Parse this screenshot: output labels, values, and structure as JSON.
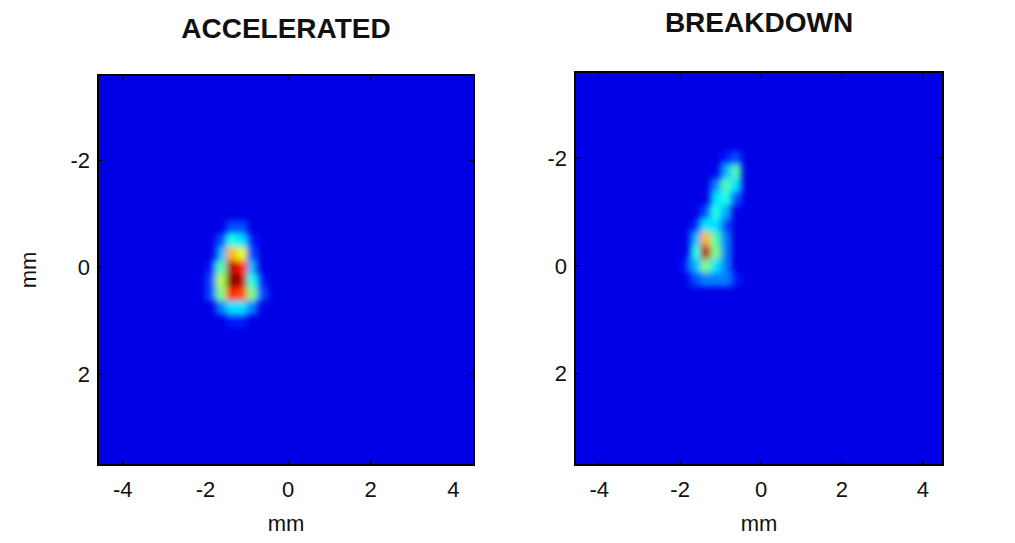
{
  "chart_data": [
    {
      "type": "heatmap",
      "title": "ACCELERATED",
      "xlabel": "mm",
      "ylabel": "mm",
      "xlim": [
        -4.6,
        4.5
      ],
      "ylim": [
        -3.6,
        3.7
      ],
      "xticks": [
        -4,
        -2,
        0,
        2,
        4
      ],
      "yticks": [
        -2,
        0,
        2
      ],
      "zlim": [
        0,
        1
      ],
      "background": 0.1,
      "cell_size": 0.25,
      "cells": [
        [
          -1.375,
          -0.75,
          0.2
        ],
        [
          -1.125,
          -0.75,
          0.2
        ],
        [
          -1.625,
          -0.5,
          0.2
        ],
        [
          -1.375,
          -0.5,
          0.4
        ],
        [
          -1.125,
          -0.5,
          0.35
        ],
        [
          -0.875,
          -0.5,
          0.15
        ],
        [
          -1.625,
          -0.25,
          0.3
        ],
        [
          -1.375,
          -0.25,
          0.7
        ],
        [
          -1.125,
          -0.25,
          0.6
        ],
        [
          -0.875,
          -0.25,
          0.2
        ],
        [
          -1.875,
          0,
          0.15
        ],
        [
          -1.625,
          0,
          0.45
        ],
        [
          -1.375,
          0,
          0.95
        ],
        [
          -1.125,
          0,
          0.85
        ],
        [
          -0.875,
          0,
          0.3
        ],
        [
          -1.875,
          0.25,
          0.2
        ],
        [
          -1.625,
          0.25,
          0.55
        ],
        [
          -1.375,
          0.25,
          1.0
        ],
        [
          -1.125,
          0.25,
          0.95
        ],
        [
          -0.875,
          0.25,
          0.4
        ],
        [
          -0.625,
          0.25,
          0.15
        ],
        [
          -1.875,
          0.5,
          0.2
        ],
        [
          -1.625,
          0.5,
          0.5
        ],
        [
          -1.375,
          0.5,
          0.85
        ],
        [
          -1.125,
          0.5,
          0.8
        ],
        [
          -0.875,
          0.5,
          0.5
        ],
        [
          -0.625,
          0.5,
          0.2
        ],
        [
          -1.625,
          0.75,
          0.25
        ],
        [
          -1.375,
          0.75,
          0.35
        ],
        [
          -1.125,
          0.75,
          0.35
        ],
        [
          -0.875,
          0.75,
          0.25
        ],
        [
          -1.375,
          1.0,
          0.15
        ],
        [
          -1.125,
          1.0,
          0.15
        ]
      ]
    },
    {
      "type": "heatmap",
      "title": "BREAKDOWN",
      "xlabel": "mm",
      "xlim": [
        -4.6,
        4.5
      ],
      "ylim": [
        -3.6,
        3.7
      ],
      "xticks": [
        -4,
        -2,
        0,
        2,
        4
      ],
      "yticks": [
        -2,
        0,
        2
      ],
      "zlim": [
        0,
        1
      ],
      "background": 0.1,
      "cell_size": 0.25,
      "cells": [
        [
          -0.875,
          -2.0,
          0.15
        ],
        [
          -0.625,
          -2.0,
          0.2
        ],
        [
          -0.875,
          -1.75,
          0.3
        ],
        [
          -0.625,
          -1.75,
          0.45
        ],
        [
          -1.125,
          -1.5,
          0.25
        ],
        [
          -0.875,
          -1.5,
          0.45
        ],
        [
          -0.625,
          -1.5,
          0.35
        ],
        [
          -1.125,
          -1.25,
          0.35
        ],
        [
          -0.875,
          -1.25,
          0.4
        ],
        [
          -0.625,
          -1.25,
          0.2
        ],
        [
          -1.375,
          -1.0,
          0.2
        ],
        [
          -1.125,
          -1.0,
          0.4
        ],
        [
          -0.875,
          -1.0,
          0.3
        ],
        [
          -1.625,
          -0.75,
          0.15
        ],
        [
          -1.375,
          -0.75,
          0.35
        ],
        [
          -1.125,
          -0.75,
          0.35
        ],
        [
          -0.875,
          -0.75,
          0.2
        ],
        [
          -1.625,
          -0.5,
          0.3
        ],
        [
          -1.375,
          -0.5,
          0.7
        ],
        [
          -1.125,
          -0.5,
          0.45
        ],
        [
          -0.875,
          -0.5,
          0.25
        ],
        [
          -1.625,
          -0.25,
          0.4
        ],
        [
          -1.375,
          -0.25,
          0.95
        ],
        [
          -1.125,
          -0.25,
          0.5
        ],
        [
          -0.875,
          -0.25,
          0.25
        ],
        [
          -1.875,
          0,
          0.15
        ],
        [
          -1.625,
          0,
          0.3
        ],
        [
          -1.375,
          0,
          0.5
        ],
        [
          -1.125,
          0,
          0.35
        ],
        [
          -0.875,
          0,
          0.25
        ],
        [
          -1.625,
          0.25,
          0.2
        ],
        [
          -1.375,
          0.25,
          0.25
        ],
        [
          -1.125,
          0.25,
          0.25
        ],
        [
          -0.875,
          0.25,
          0.25
        ],
        [
          -0.625,
          0.25,
          0.15
        ]
      ]
    }
  ]
}
